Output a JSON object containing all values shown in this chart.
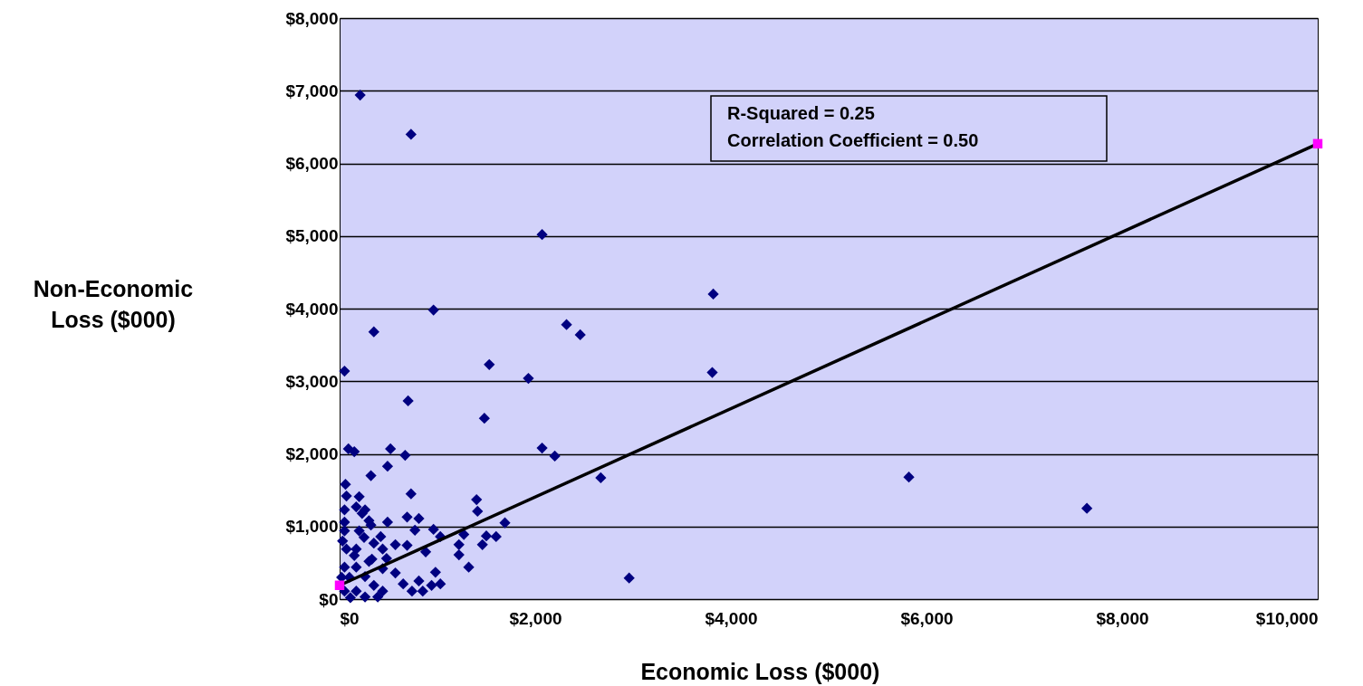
{
  "chart_data": {
    "type": "scatter",
    "xlabel": "Economic Loss ($000)",
    "ylabel": "Non-Economic\nLoss ($000)",
    "annotations": [
      "R-Squared = 0.25",
      "Correlation Coefficient = 0.50"
    ],
    "xlim": [
      0,
      10000
    ],
    "xticks": [
      {
        "value": 0,
        "label": "$0"
      },
      {
        "value": 2000,
        "label": "$2,000"
      },
      {
        "value": 4000,
        "label": "$4,000"
      },
      {
        "value": 6000,
        "label": "$6,000"
      },
      {
        "value": 8000,
        "label": "$8,000"
      },
      {
        "value": 10000,
        "label": "$10,000"
      }
    ],
    "ylim": [
      0,
      8000
    ],
    "yticks": [
      {
        "value": 0,
        "label": "$0"
      },
      {
        "value": 1000,
        "label": "$1,000"
      },
      {
        "value": 2000,
        "label": "$2,000"
      },
      {
        "value": 3000,
        "label": "$3,000"
      },
      {
        "value": 4000,
        "label": "$4,000"
      },
      {
        "value": 5000,
        "label": "$5,000"
      },
      {
        "value": 6000,
        "label": "$6,000"
      },
      {
        "value": 7000,
        "label": "$7,000"
      },
      {
        "value": 8000,
        "label": "$8,000"
      }
    ],
    "grid": "y",
    "series": [
      {
        "type": "scatter",
        "marker": "diamond",
        "color": "#000080",
        "x": [
          210,
          730,
          350,
          960,
          50,
          1530,
          2320,
          2460,
          1930,
          2070,
          3820,
          3810,
          1480,
          2070,
          2200,
          2670,
          1400,
          1410,
          1690,
          1500,
          1600,
          1460,
          1270,
          1220,
          1220,
          1320,
          2960,
          5820,
          7640,
          700,
          90,
          150,
          520,
          670,
          490,
          320,
          60,
          200,
          70,
          730,
          690,
          810,
          490,
          960,
          770,
          1030,
          570,
          690,
          880,
          570,
          650,
          740,
          810,
          850,
          980,
          1030,
          940,
          440,
          480,
          420,
          300,
          230,
          260,
          170,
          50,
          50,
          50,
          200,
          320,
          350,
          440,
          300,
          170,
          70,
          50,
          170,
          260,
          350,
          440,
          50,
          170,
          110,
          260,
          390,
          20,
          30,
          150,
          100,
          250,
          330
        ],
        "values": [
          6940,
          6400,
          3680,
          3980,
          3140,
          3230,
          3780,
          3640,
          3040,
          5020,
          4200,
          3120,
          2490,
          2080,
          1970,
          1670,
          1370,
          1210,
          1050,
          870,
          860,
          750,
          890,
          750,
          610,
          440,
          290,
          1680,
          1250,
          2730,
          2070,
          2030,
          2070,
          1980,
          1830,
          1700,
          1580,
          1410,
          1420,
          1450,
          1130,
          1110,
          1060,
          960,
          950,
          860,
          750,
          740,
          650,
          360,
          210,
          110,
          250,
          110,
          370,
          210,
          190,
          420,
          560,
          860,
          1080,
          1180,
          1230,
          1270,
          1230,
          1060,
          940,
          940,
          1020,
          770,
          690,
          520,
          690,
          690,
          440,
          440,
          310,
          190,
          110,
          110,
          110,
          20,
          30,
          30,
          300,
          800,
          600,
          300,
          850,
          550
        ]
      },
      {
        "type": "line",
        "marker": "none",
        "line_style": "solid",
        "color": "#000000",
        "x": [
          0,
          10000
        ],
        "values": [
          190,
          6270
        ]
      },
      {
        "type": "scatter",
        "marker": "square",
        "color": "#ff00ff",
        "x": [
          0,
          10000
        ],
        "values": [
          190,
          6270
        ]
      }
    ]
  }
}
